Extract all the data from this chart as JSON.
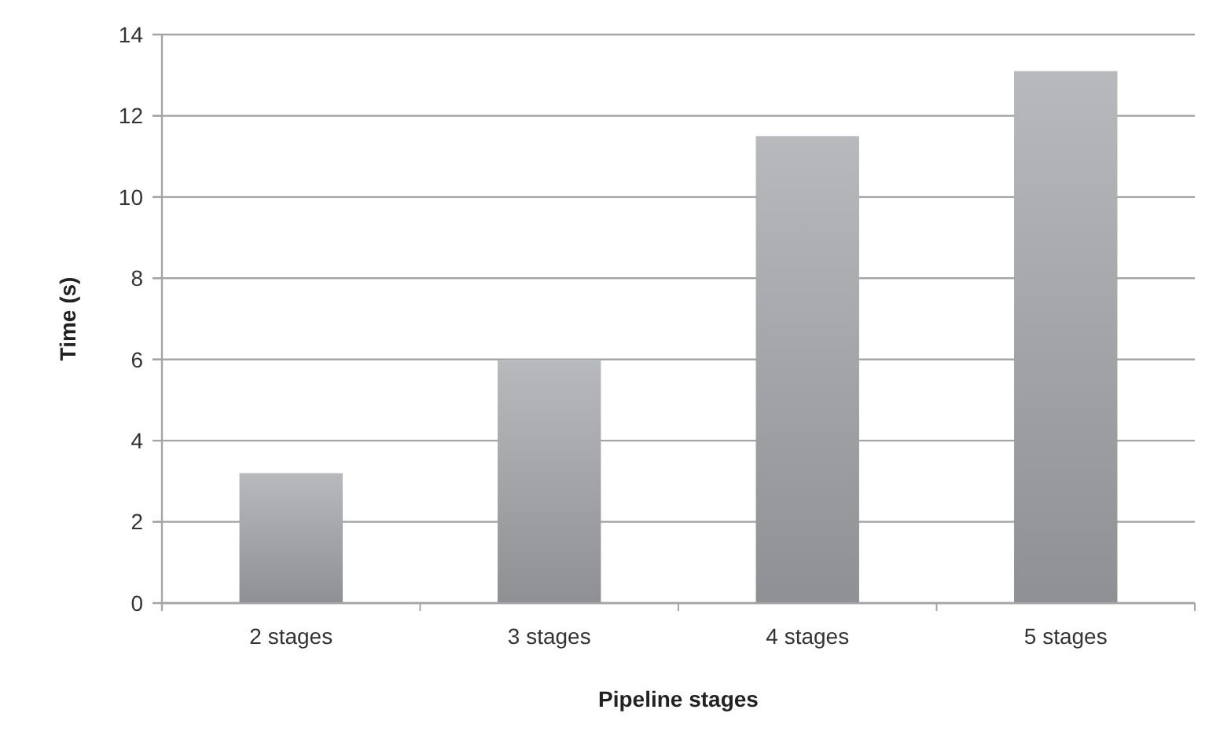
{
  "chart_data": {
    "type": "bar",
    "xlabel": "Pipeline stages",
    "ylabel": "Time (s)",
    "categories": [
      "2 stages",
      "3 stages",
      "4 stages",
      "5 stages"
    ],
    "series": [
      {
        "color": "#a2a3a7",
        "values": [
          3.2,
          5.97,
          11.5,
          13.1
        ]
      }
    ],
    "ylim": [
      0,
      14
    ],
    "yticks": [
      0,
      2,
      4,
      6,
      8,
      10,
      12,
      14
    ],
    "grid": "y"
  }
}
